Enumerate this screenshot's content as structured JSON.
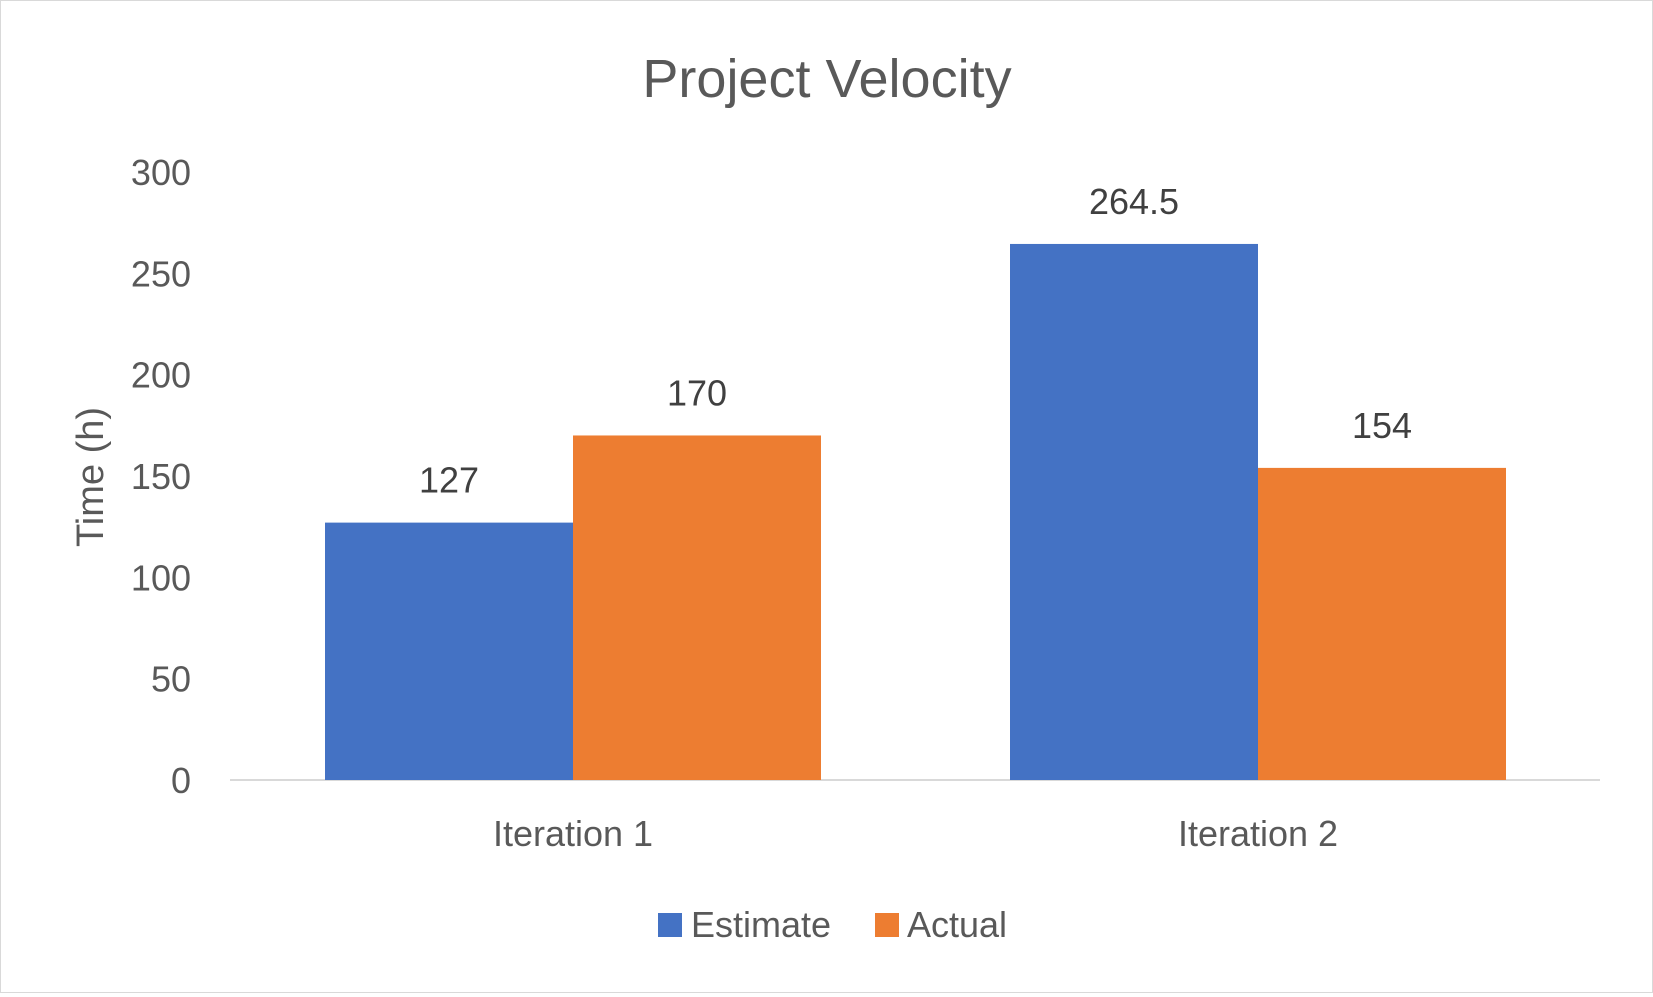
{
  "chart_data": {
    "type": "bar",
    "title": "Project Velocity",
    "xlabel": "",
    "ylabel": "Time (h)",
    "categories": [
      "Iteration 1",
      "Iteration 2"
    ],
    "series": [
      {
        "name": "Estimate",
        "values": [
          127,
          264.5
        ],
        "labels": [
          "127",
          "264.5"
        ],
        "color": "#4472C4"
      },
      {
        "name": "Actual",
        "values": [
          170,
          154
        ],
        "labels": [
          "170",
          "154"
        ],
        "color": "#ED7D31"
      }
    ],
    "ylim": [
      0,
      300
    ],
    "yticks": [
      0,
      50,
      100,
      150,
      200,
      250,
      300
    ],
    "grid": false,
    "legend": "bottom"
  }
}
